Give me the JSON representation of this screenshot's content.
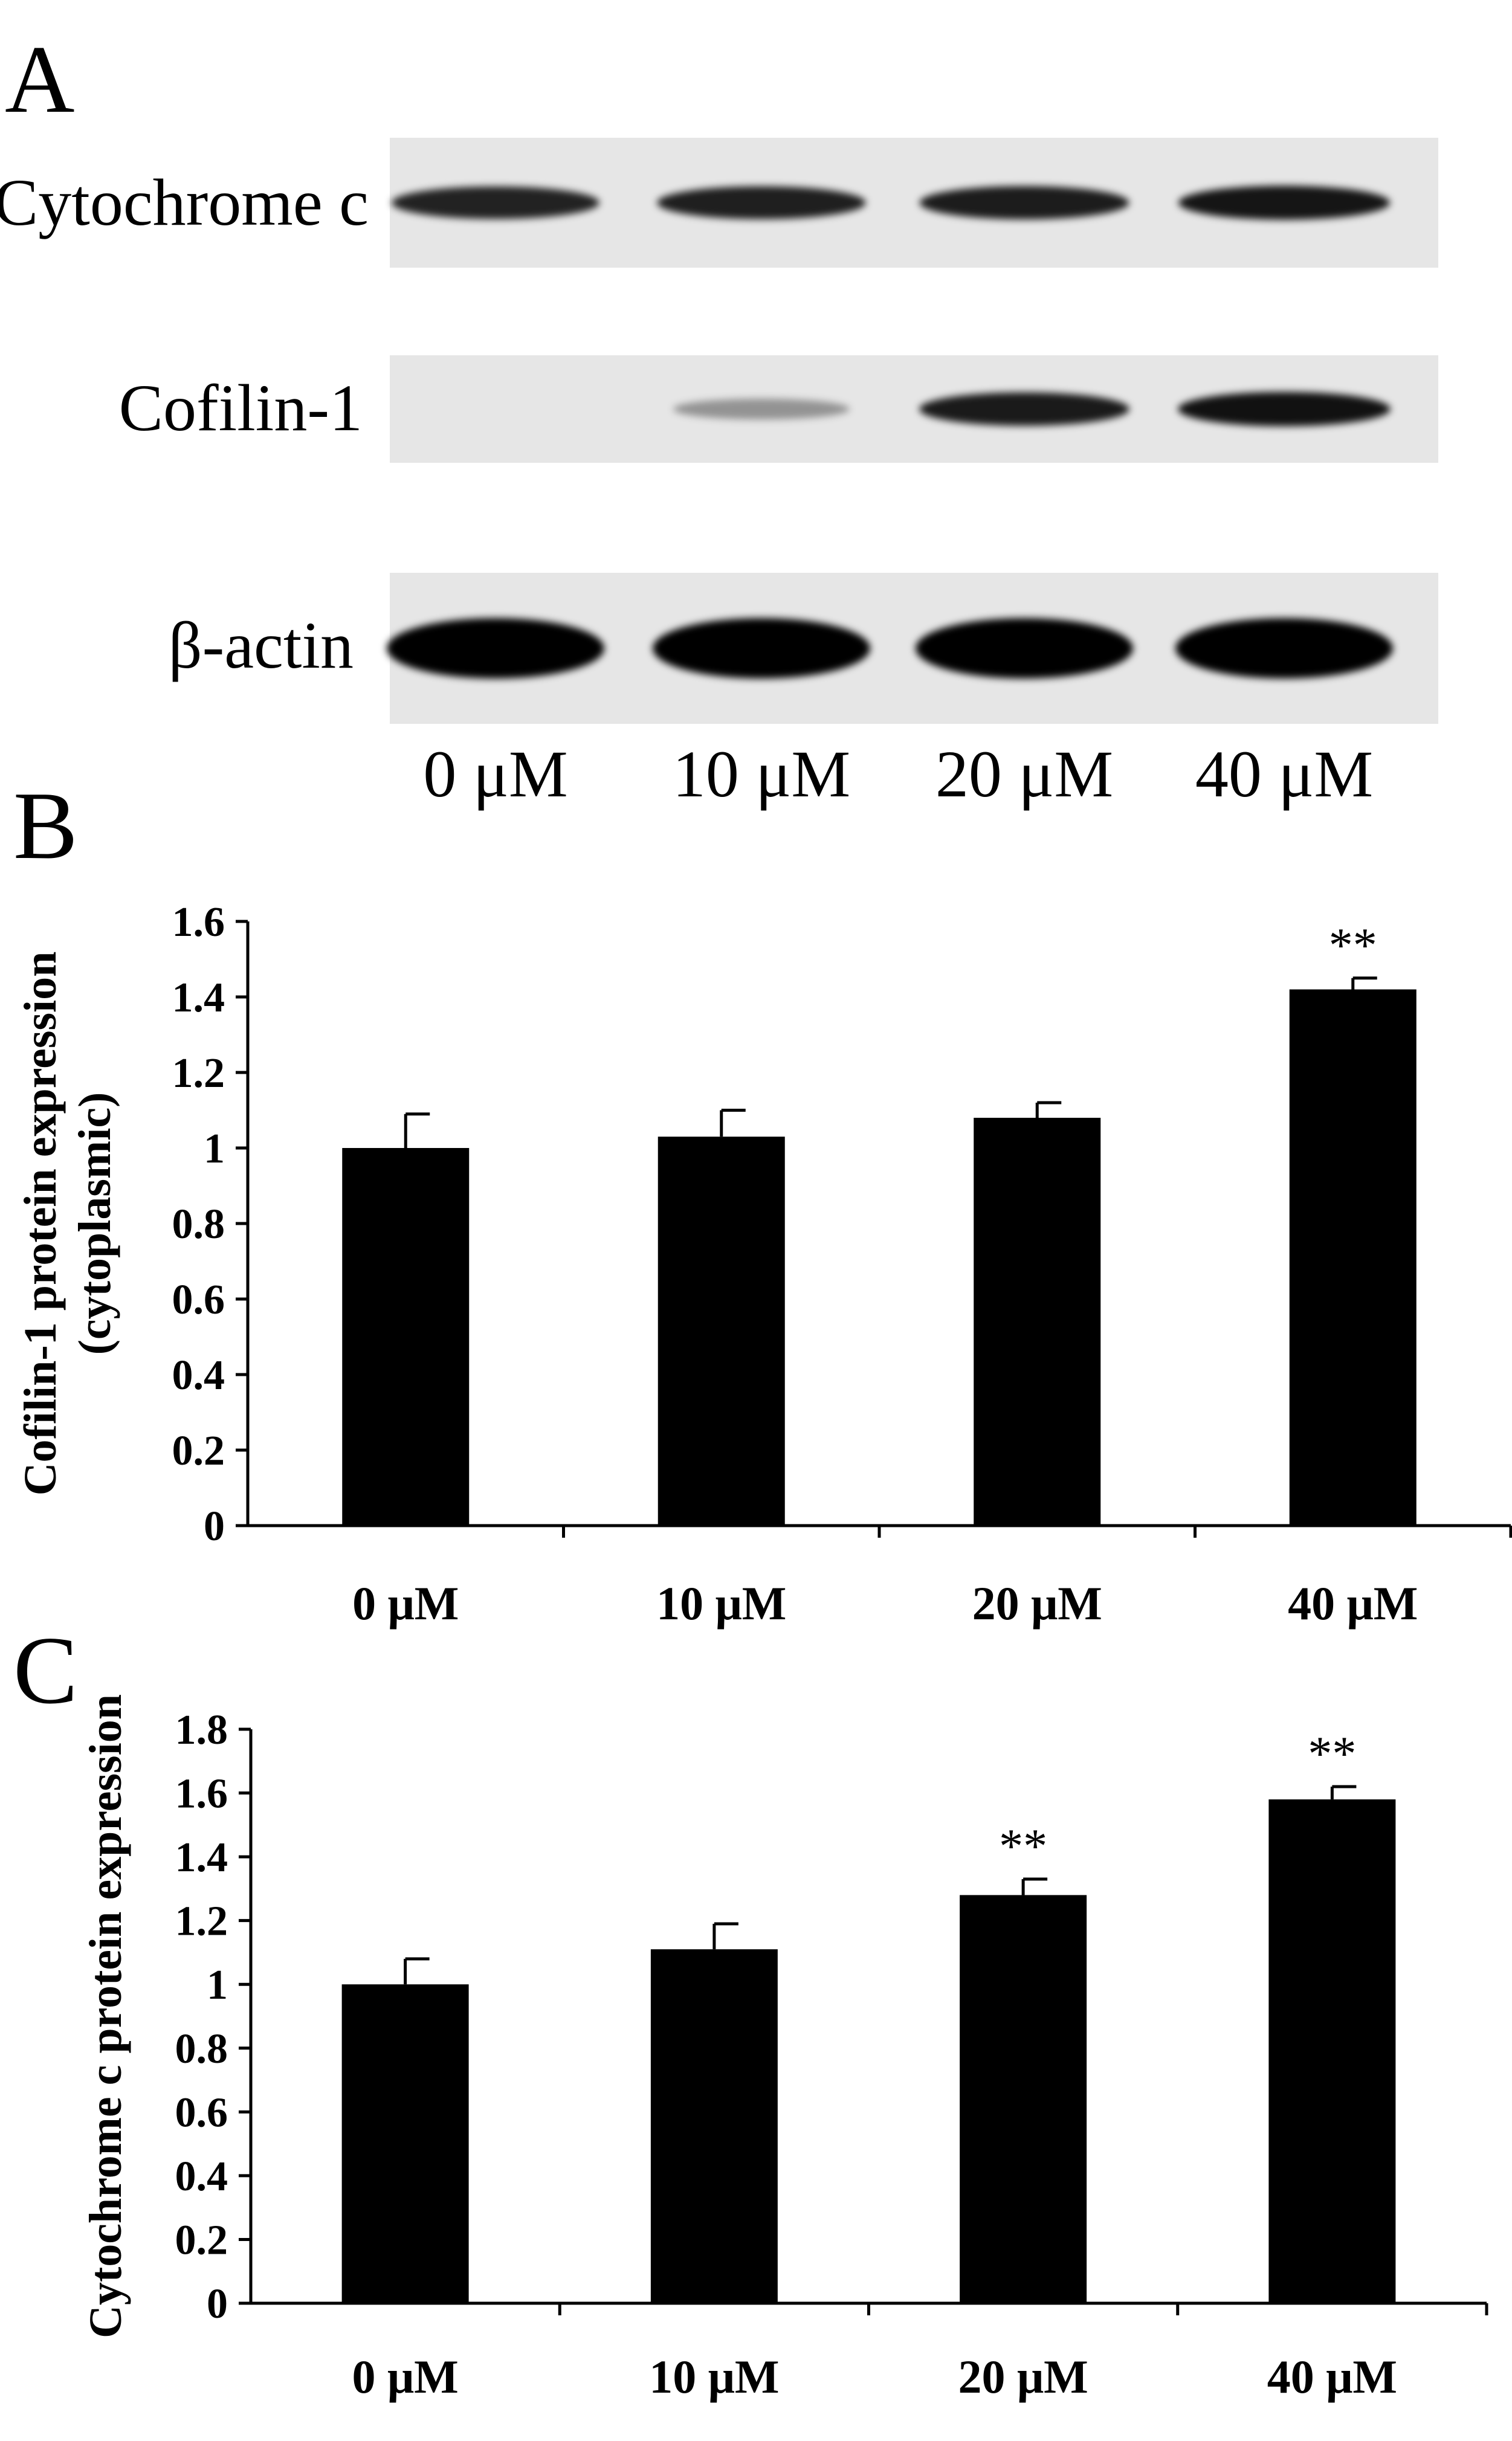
{
  "panels": {
    "A": {
      "letter": "A",
      "rows": [
        {
          "label": "Cytochrome c",
          "bands": [
            0.8,
            0.82,
            0.84,
            0.88
          ]
        },
        {
          "label": "Cofilin-1",
          "bands": [
            0.0,
            0.15,
            0.85,
            0.9
          ]
        },
        {
          "label": "β-actin",
          "bands": [
            1.0,
            1.0,
            1.0,
            1.0
          ]
        }
      ],
      "lanes": [
        "0 μM",
        "10 μM",
        "20 μM",
        "40 μM"
      ]
    },
    "B": {
      "letter": "B"
    },
    "C": {
      "letter": "C"
    }
  },
  "chart_data": [
    {
      "type": "bar",
      "panel": "B",
      "categories": [
        "0 μM",
        "10 μM",
        "20 μM",
        "40 μM"
      ],
      "values": [
        1.0,
        1.03,
        1.08,
        1.42
      ],
      "errors": [
        0.09,
        0.07,
        0.04,
        0.03
      ],
      "annotations": [
        "",
        "",
        "",
        "**"
      ],
      "ylabel_lines": [
        "Cofilin-1 protein expression",
        "(cytoplasmic)"
      ],
      "ylim": [
        0,
        1.6
      ],
      "yticks": [
        0,
        0.2,
        0.4,
        0.6,
        0.8,
        1,
        1.2,
        1.4,
        1.6
      ],
      "ytick_labels": [
        "0",
        "0.2",
        "0.4",
        "0.6",
        "0.8",
        "1",
        "1.2",
        "1.4",
        "1.6"
      ],
      "bar_color": "#000000",
      "grid": false
    },
    {
      "type": "bar",
      "panel": "C",
      "categories": [
        "0 μM",
        "10 μM",
        "20 μM",
        "40 μM"
      ],
      "values": [
        1.0,
        1.11,
        1.28,
        1.58
      ],
      "errors": [
        0.08,
        0.08,
        0.05,
        0.04
      ],
      "annotations": [
        "",
        "",
        "**",
        "**"
      ],
      "ylabel_lines": [
        "Cytochrome c protein expression"
      ],
      "ylim": [
        0,
        1.8
      ],
      "yticks": [
        0,
        0.2,
        0.4,
        0.6,
        0.8,
        1,
        1.2,
        1.4,
        1.6,
        1.8
      ],
      "ytick_labels": [
        "0",
        "0.2",
        "0.4",
        "0.6",
        "0.8",
        "1",
        "1.2",
        "1.4",
        "1.6",
        "1.8"
      ],
      "bar_color": "#000000",
      "grid": false
    }
  ]
}
